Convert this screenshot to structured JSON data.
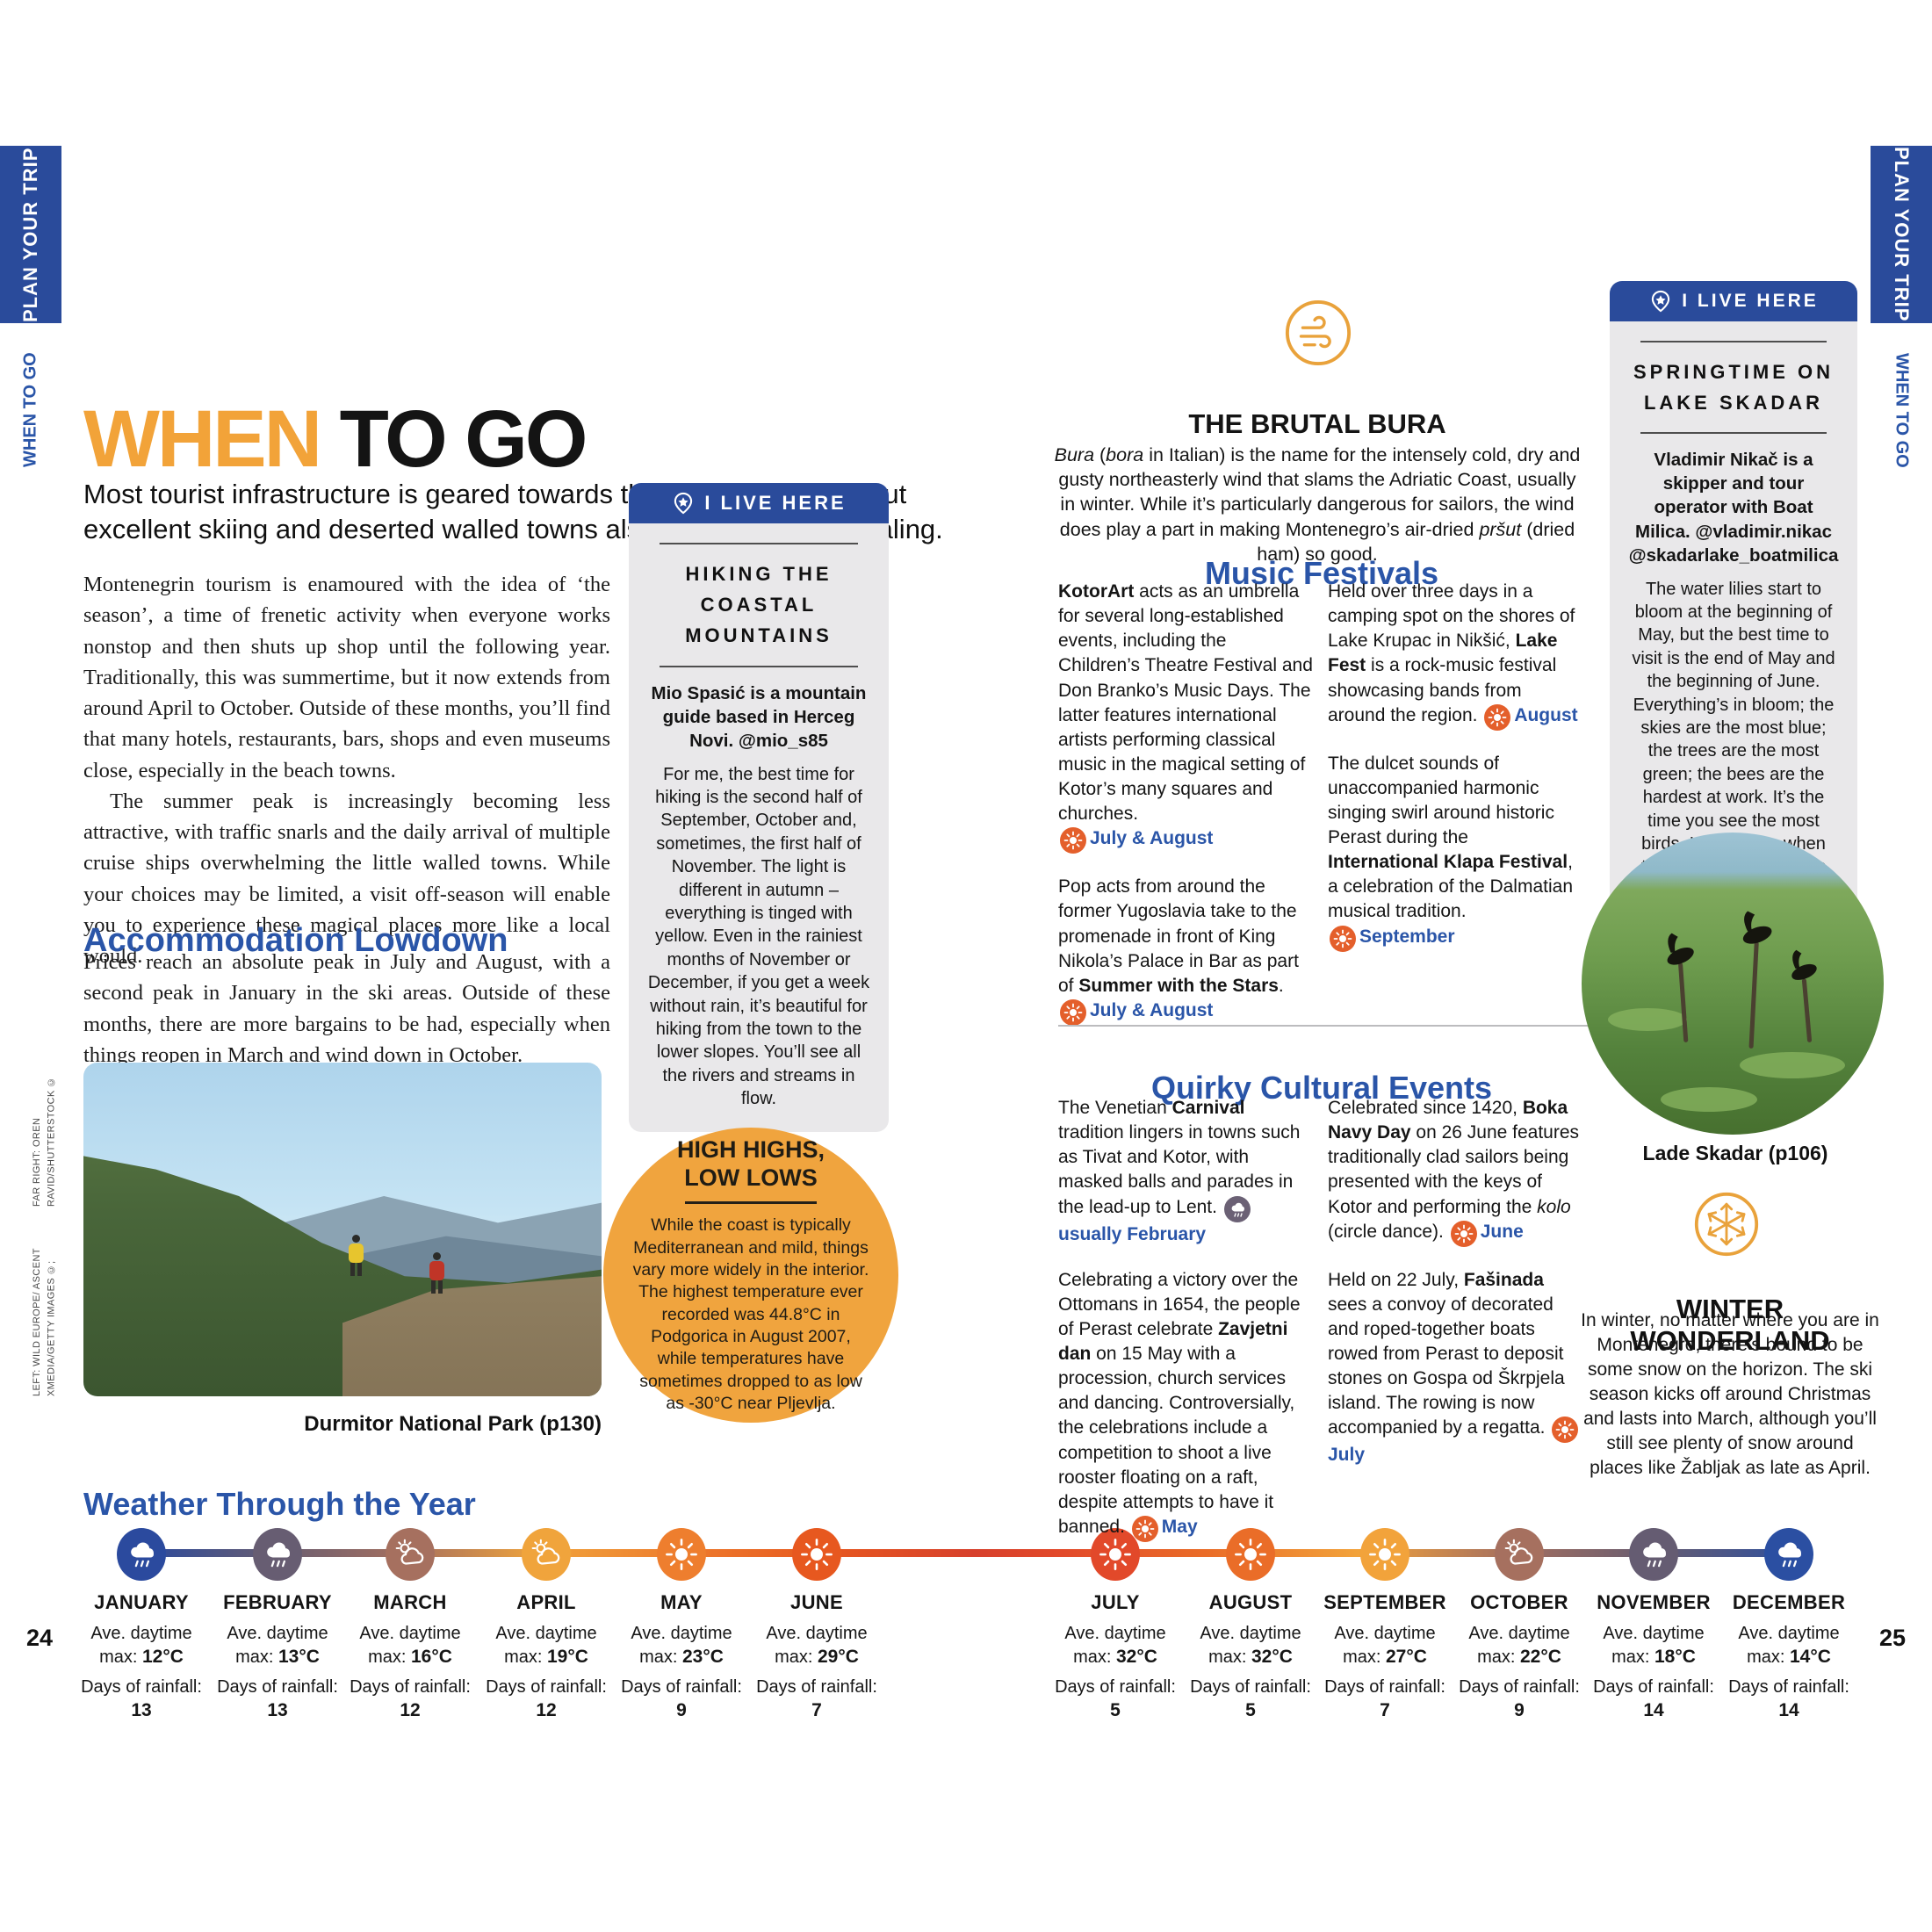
{
  "side_tabs": {
    "section": "PLAN YOUR TRIP",
    "chapter": "WHEN TO GO"
  },
  "header": {
    "title_accent": "WHEN",
    "title_rest": " TO GO",
    "subtitle": "Most tourist infrastructure is geared towards the warmer months, but excellent skiing and deserted walled towns also make winter appealing."
  },
  "intro": {
    "p1": "Montenegrin tourism is enamoured with the idea of ‘the season’, a time of frenetic activity when everyone works nonstop and then shuts up shop until the following year. Traditionally, this was summertime, but it now extends from around April to October. Outside of these months, you’ll find that many hotels, restaurants, bars, shops and even museums close, especially in the beach towns.",
    "p2": "The summer peak is increasingly becoming less attractive, with traffic snarls and the daily arrival of multiple cruise ships overwhelming the little walled towns. While your choices may be limited, a visit off-season will enable you to experience these magical places more like a local would."
  },
  "accommodation": {
    "heading": "Accommodation Lowdown",
    "body": "Prices reach an absolute peak in July and August, with a second peak in January in the ski areas. Outside of these months, there are more bargains to be had, especially when things reopen in March and wind down in October."
  },
  "photo": {
    "caption": "Durmitor National Park (p130)",
    "credit_line1": "LEFT: WILD EUROPE/ ASCENT XMEDIA/GETTY IMAGES ©;",
    "credit_line2": "FAR RIGHT: OREN RAVID/SHUTTERSTOCK ©"
  },
  "bura": {
    "heading": "THE BRUTAL BURA",
    "body": "*Bura* (*bora* in Italian) is the name for the intensely cold, dry and gusty northeasterly wind that slams the Adriatic Coast, usually in winter. While it’s particularly dangerous for sailors, the wind does play a part in making Montenegro’s air-dried *pršut* (dried ham) so good.",
    "icon": "wind-icon",
    "icon_color": "#e9a23b"
  },
  "music": {
    "heading": "Music Festivals",
    "items": [
      {
        "text": "**KotorArt** acts as an umbrella for several long-established events, including the Children’s Theatre Festival and Don Branko’s Music Days. The latter features international artists performing classical music in the magical setting of Kotor’s many squares and churches.",
        "icon": "sun-icon",
        "when": "July & August"
      },
      {
        "text": "Pop acts from around the former Yugoslavia take to the promenade in front of King Nikola’s Palace in Bar as part of **Summer with the Stars**.",
        "icon": "sun-icon",
        "when": "July & August"
      },
      {
        "text": "Held over three days in a camping spot on the shores of Lake Krupac in Nikšić, **Lake Fest** is a rock-music festival showcasing bands from around the region.",
        "icon": "sun-icon",
        "when": "August"
      },
      {
        "text": "The dulcet sounds of unaccompanied harmonic singing swirl around historic Perast during the **International Klapa Festival**, a celebration of the Dalmatian musical tradition.",
        "icon": "sun-icon",
        "when": "September"
      }
    ]
  },
  "quirky": {
    "heading": "Quirky Cultural Events",
    "items": [
      {
        "text": "The Venetian **Carnival** tradition lingers in towns such as Tivat and Kotor, with masked balls and parades in the lead-up to Lent.",
        "icon": "rain-cloud-icon",
        "when": "usually February"
      },
      {
        "text": "Celebrating a victory over the Ottomans in 1654, the people of Perast celebrate **Zavjetni dan** on 15 May with a procession, church services and dancing. Controversially, the celebrations include a competition to shoot a live rooster floating on a raft, despite attempts to have it banned.",
        "icon": "sun-icon",
        "when": "May"
      },
      {
        "text": "Celebrated since 1420, **Boka Navy Day** on 26 June features traditionally clad sailors being presented with the keys of Kotor and performing the *kolo* (circle dance).",
        "icon": "sun-icon",
        "when": "June"
      },
      {
        "text": "Held on 22 July, **Fašinada** sees a convoy of decorated and roped-together boats rowed from Perast to deposit stones on Gospa od Škrpjela island. The rowing is now accompanied by a regatta.",
        "icon": "sun-icon",
        "when": "July"
      }
    ]
  },
  "live_here_left": {
    "badge": "I LIVE HERE",
    "title": "HIKING THE COASTAL MOUNTAINS",
    "intro": "Mio Spasić is a mountain guide based in Herceg Novi. @mio_s85",
    "body": "For me, the best time for hiking is the second half of September, October and, sometimes, the first half of November. The light is different in autumn – everything is tinged with yellow. Even in the rainiest months of November or December, if you get a week without rain, it’s beautiful for hiking from the town to the lower slopes. You’ll see all the rivers and streams in flow."
  },
  "live_here_right": {
    "badge": "I LIVE HERE",
    "title": "SPRINGTIME ON LAKE SKADAR",
    "intro": "Vladimir Nikač is a skipper and tour operator with Boat Milica. @vladimir.nikac @skadarlake_boatmilica",
    "body": "The water lilies start to bloom at the beginning of May, but the best time to visit is the end of May and the beginning of June. Everything’s in bloom; the skies are the most blue; the trees are the most green; the bees are the hardest at work. It’s the time you see the most birds. It’s the time when the most magical things happen.",
    "photo_caption": "Lade Skadar (p106)"
  },
  "high_lows": {
    "title_line1": "HIGH HIGHS,",
    "title_line2": "LOW LOWS",
    "body": "While the coast is typically Mediterranean and mild, things vary more widely in the interior. The highest temperature ever recorded was 44.8°C in Podgorica in August 2007, while temperatures have sometimes dropped to as low as -30°C near Pljevlja.",
    "bg": "#f0a43e"
  },
  "winter": {
    "heading": "WINTER WONDERLAND",
    "icon": "snowflake-icon",
    "body": "In winter, no matter where you are in Montenegro, there’s bound to be some snow on the horizon. The ski season kicks off around Christmas and lasts into March, although you’ll still see plenty of snow around places like Žabljak as late as April."
  },
  "weather": {
    "heading": "Weather Through the Year",
    "labels": {
      "ave": "Ave. daytime",
      "max": "max:",
      "rain": "Days of rainfall:"
    },
    "months": [
      {
        "name": "JANUARY",
        "temp": "12°C",
        "rainfall": "13",
        "icon": "rain-cloud-icon",
        "color": "#2b4a9e"
      },
      {
        "name": "FEBRUARY",
        "temp": "13°C",
        "rainfall": "13",
        "icon": "rain-cloud-icon",
        "color": "#675d72"
      },
      {
        "name": "MARCH",
        "temp": "16°C",
        "rainfall": "12",
        "icon": "sun-cloud-icon",
        "color": "#a6705f"
      },
      {
        "name": "APRIL",
        "temp": "19°C",
        "rainfall": "12",
        "icon": "sun-cloud-icon",
        "color": "#f0a43c"
      },
      {
        "name": "MAY",
        "temp": "23°C",
        "rainfall": "9",
        "icon": "sun-icon",
        "color": "#ee7e2e"
      },
      {
        "name": "JUNE",
        "temp": "29°C",
        "rainfall": "7",
        "icon": "sun-icon",
        "color": "#e7581f"
      },
      {
        "name": "JULY",
        "temp": "32°C",
        "rainfall": "5",
        "icon": "sun-icon",
        "color": "#e2492a"
      },
      {
        "name": "AUGUST",
        "temp": "32°C",
        "rainfall": "5",
        "icon": "sun-icon",
        "color": "#ea6d28"
      },
      {
        "name": "SEPTEMBER",
        "temp": "27°C",
        "rainfall": "7",
        "icon": "sun-icon",
        "color": "#f2a33b"
      },
      {
        "name": "OCTOBER",
        "temp": "22°C",
        "rainfall": "9",
        "icon": "sun-cloud-icon",
        "color": "#a6705f"
      },
      {
        "name": "NOVEMBER",
        "temp": "18°C",
        "rainfall": "14",
        "icon": "rain-cloud-icon",
        "color": "#655c72"
      },
      {
        "name": "DECEMBER",
        "temp": "14°C",
        "rainfall": "14",
        "icon": "rain-cloud-icon",
        "color": "#2b4fa2"
      }
    ]
  },
  "page": {
    "left_num": "24",
    "right_num": "25"
  },
  "colors": {
    "brand_blue": "#2a4b9b",
    "heading_blue": "#2a55a8",
    "accent_orange": "#f2a339",
    "sun_orange": "#e45f2b",
    "cloud_grey": "#6b6175",
    "card_grey": "#e9e8ea"
  }
}
